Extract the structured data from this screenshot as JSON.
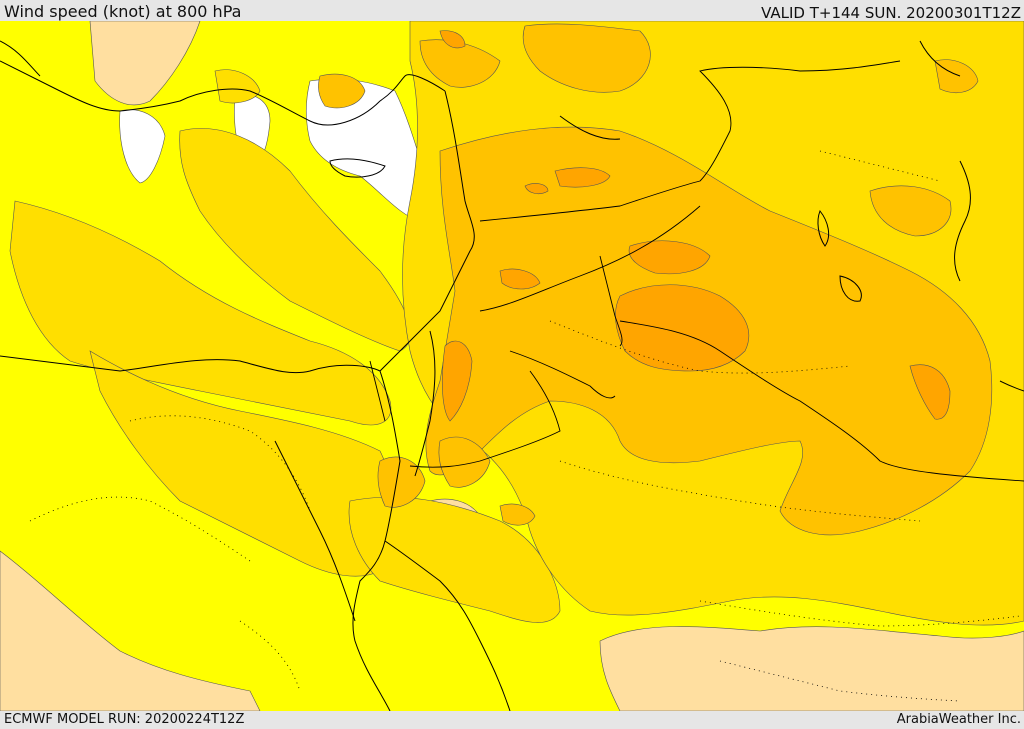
{
  "header": {
    "title": "Wind speed (knot) at 800 hPa",
    "valid_time": "VALID T+144 SUN. 20200301T12Z"
  },
  "footer": {
    "model_run": "ECMWF MODEL RUN: 20200224T12Z",
    "credit": "ArabiaWeather Inc."
  },
  "map": {
    "palette": {
      "calm": "#ffffff",
      "band1": "#ffffff",
      "band2": "#ffff00",
      "band3": "#ffdf00",
      "band4": "#ffc200",
      "band5": "#ffa500",
      "band6": "#ff8c00",
      "land_low": "#ffdfa0"
    }
  }
}
